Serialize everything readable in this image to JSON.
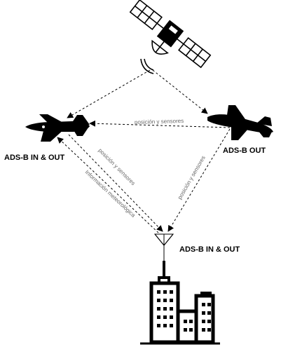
{
  "nodes": {
    "left_plane": {
      "label": "ADS-B IN & OUT"
    },
    "right_plane": {
      "label": "ADS-B OUT"
    },
    "ground_station": {
      "label": "ADS-B IN & OUT"
    }
  },
  "edges": {
    "planes_link": "posición y sensores",
    "left_to_antenna": "posición y sensores",
    "antenna_to_left": "Información meteorológica",
    "right_to_antenna": "posición y sensores"
  },
  "colors": {
    "line": "#000000",
    "edge_text": "#666666"
  }
}
